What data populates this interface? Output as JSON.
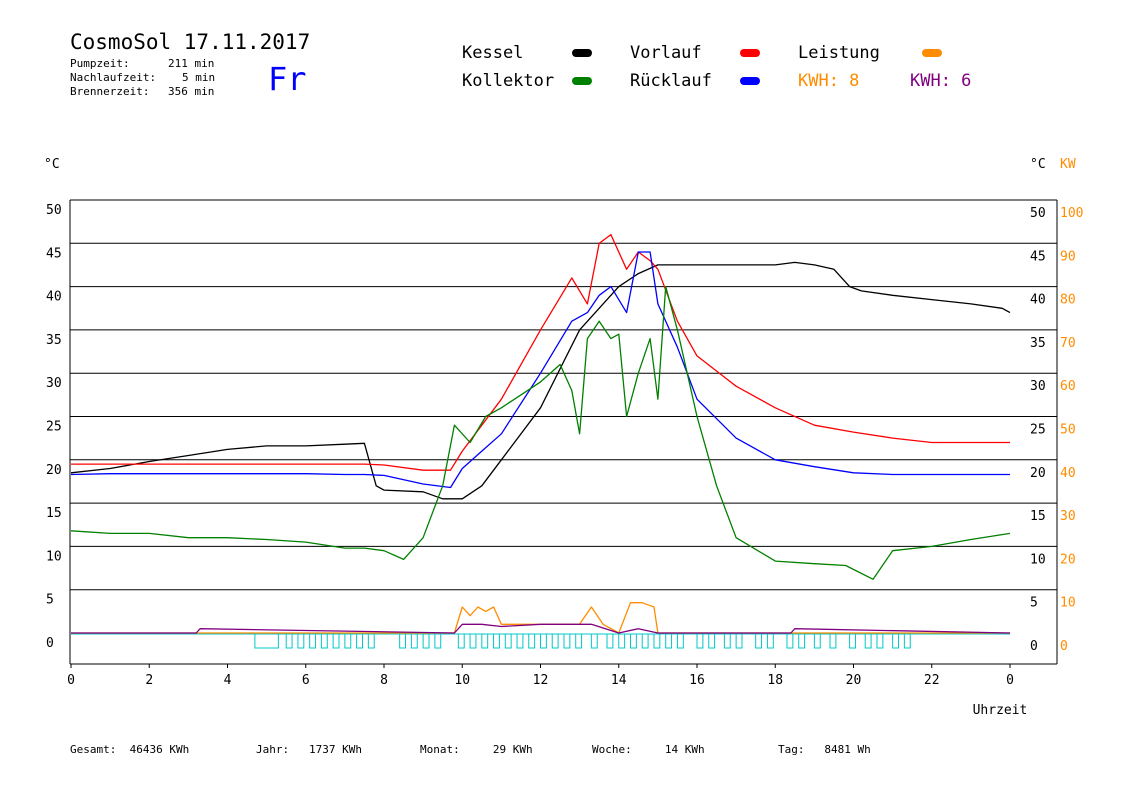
{
  "header": {
    "title": "CosmoSol 17.11.2017",
    "day": "Fr",
    "stats": [
      {
        "label": "Pumpzeit:",
        "value": "211 min"
      },
      {
        "label": "Nachlaufzeit:",
        "value": "5 min"
      },
      {
        "label": "Brennerzeit:",
        "value": "356 min"
      }
    ]
  },
  "legend": {
    "kessel": "Kessel",
    "kollektor": "Kollektor",
    "vorlauf": "Vorlauf",
    "ruecklauf": "Rücklauf",
    "leistung": "Leistung",
    "kwh1": "KWH: 8",
    "kwh2": "KWH: 6"
  },
  "colors": {
    "kessel": "#000000",
    "kollektor": "#008000",
    "vorlauf": "#ff0000",
    "ruecklauf": "#0000ff",
    "leistung": "#ff8c00",
    "kwh2": "#800080",
    "pump": "#00c8c8"
  },
  "footer": {
    "gesamt": "Gesamt:  46436 KWh",
    "jahr": "Jahr:   1737 KWh",
    "monat": "Monat:     29 KWh",
    "woche": "Woche:     14 KWh",
    "tag": "Tag:   8481 Wh"
  },
  "chart_data": {
    "type": "line",
    "xlabel": "Uhrzeit",
    "ylabel_left": "°C",
    "ylabel_right": "°C",
    "ylabel_right2": "KW",
    "xlim": [
      0,
      24
    ],
    "ylim": [
      0,
      50
    ],
    "y2lim": [
      0,
      100
    ],
    "x_ticks": [
      "0",
      "2",
      "4",
      "6",
      "8",
      "10",
      "12",
      "14",
      "16",
      "18",
      "20",
      "22",
      "0"
    ],
    "y_ticks": [
      0,
      5,
      10,
      15,
      20,
      25,
      30,
      35,
      40,
      45,
      50
    ],
    "y2_ticks": [
      0,
      10,
      20,
      30,
      40,
      50,
      60,
      70,
      80,
      90,
      100
    ],
    "series": [
      {
        "name": "Kessel",
        "key": "kessel",
        "x": [
          0,
          1,
          2,
          3,
          4,
          5,
          6,
          7,
          7.5,
          7.8,
          8,
          9,
          9.5,
          10,
          10.5,
          11,
          12,
          13,
          14,
          14.5,
          15,
          16,
          17,
          18,
          18.5,
          19,
          19.5,
          19.9,
          20.2,
          21,
          22,
          23,
          23.8,
          24
        ],
        "y": [
          18.5,
          19,
          19.8,
          20.5,
          21.2,
          21.6,
          21.6,
          21.8,
          21.9,
          17,
          16.5,
          16.3,
          15.5,
          15.5,
          17,
          20,
          26,
          35,
          40,
          41.5,
          42.5,
          42.5,
          42.5,
          42.5,
          42.8,
          42.5,
          42,
          40,
          39.5,
          39,
          38.5,
          38,
          37.5,
          37
        ]
      },
      {
        "name": "Vorlauf",
        "key": "vorlauf",
        "x": [
          0,
          1,
          2,
          3,
          4,
          5,
          6,
          7,
          7.5,
          8,
          9,
          9.7,
          10,
          10.5,
          11,
          12,
          12.8,
          13.2,
          13.5,
          13.8,
          14.2,
          14.5,
          14.8,
          15,
          15.5,
          16,
          17,
          18,
          19,
          20,
          21,
          22,
          23,
          24
        ],
        "y": [
          19.5,
          19.5,
          19.5,
          19.5,
          19.5,
          19.5,
          19.5,
          19.5,
          19.5,
          19.4,
          18.8,
          18.8,
          21,
          24,
          27,
          35,
          41,
          38,
          45,
          46,
          42,
          44,
          43,
          42,
          36,
          32,
          28.5,
          26,
          24,
          23.2,
          22.5,
          22,
          22,
          22
        ]
      },
      {
        "name": "Rücklauf",
        "key": "ruecklauf",
        "x": [
          0,
          1,
          2,
          3,
          4,
          5,
          6,
          7,
          7.5,
          8,
          9,
          9.7,
          10,
          10.5,
          11,
          12,
          12.8,
          13.2,
          13.5,
          13.8,
          14.2,
          14.5,
          14.8,
          15,
          15.5,
          16,
          17,
          18,
          19,
          20,
          21,
          22,
          23,
          24
        ],
        "y": [
          18.3,
          18.4,
          18.4,
          18.4,
          18.4,
          18.4,
          18.4,
          18.3,
          18.3,
          18.2,
          17.2,
          16.8,
          19,
          21,
          23,
          30,
          36,
          37,
          39,
          40,
          37,
          44,
          44,
          38,
          33,
          27,
          22.5,
          20,
          19.2,
          18.5,
          18.3,
          18.3,
          18.3,
          18.3
        ]
      },
      {
        "name": "Kollektor",
        "key": "kollektor",
        "x": [
          0,
          1,
          2,
          3,
          4,
          5,
          6,
          7,
          7.5,
          8,
          8.5,
          9,
          9.5,
          9.8,
          10.2,
          10.6,
          11,
          11.5,
          12,
          12.5,
          12.8,
          13,
          13.2,
          13.5,
          13.8,
          14,
          14.2,
          14.5,
          14.8,
          15,
          15.2,
          15.5,
          16,
          16.5,
          17,
          18,
          19,
          19.8,
          20.5,
          21,
          22,
          23,
          24
        ],
        "y": [
          11.8,
          11.5,
          11.5,
          11,
          11,
          10.8,
          10.5,
          9.8,
          9.8,
          9.5,
          8.5,
          11,
          17,
          24,
          22,
          25,
          26,
          27.5,
          29,
          31,
          28,
          23,
          34,
          36,
          34,
          34.5,
          25,
          30,
          34,
          27,
          40,
          35,
          25,
          17,
          11,
          8.3,
          8,
          7.8,
          6.2,
          9.5,
          10,
          10.8,
          11.5
        ]
      },
      {
        "name": "Leistung",
        "key": "leistung",
        "y_axis": "kw",
        "x": [
          0,
          9.8,
          10,
          10.2,
          10.4,
          10.6,
          10.8,
          11,
          12,
          13,
          13.3,
          13.6,
          14,
          14.3,
          14.6,
          14.9,
          15,
          15.5,
          24
        ],
        "y": [
          0,
          0,
          6,
          4,
          6,
          5,
          6,
          2,
          2,
          2,
          6,
          2,
          0,
          7,
          7,
          6,
          0,
          0,
          0
        ]
      },
      {
        "name": "KWH 6",
        "key": "kwh2",
        "y_axis": "kw",
        "x": [
          0,
          3.2,
          3.3,
          9.8,
          10,
          10.5,
          11,
          12,
          13,
          13.3,
          14,
          14.5,
          15,
          18.4,
          18.5,
          24
        ],
        "y": [
          0,
          0,
          1,
          0,
          2,
          2,
          1.5,
          2,
          2,
          2,
          0,
          1,
          0,
          0,
          1,
          0
        ]
      }
    ]
  }
}
